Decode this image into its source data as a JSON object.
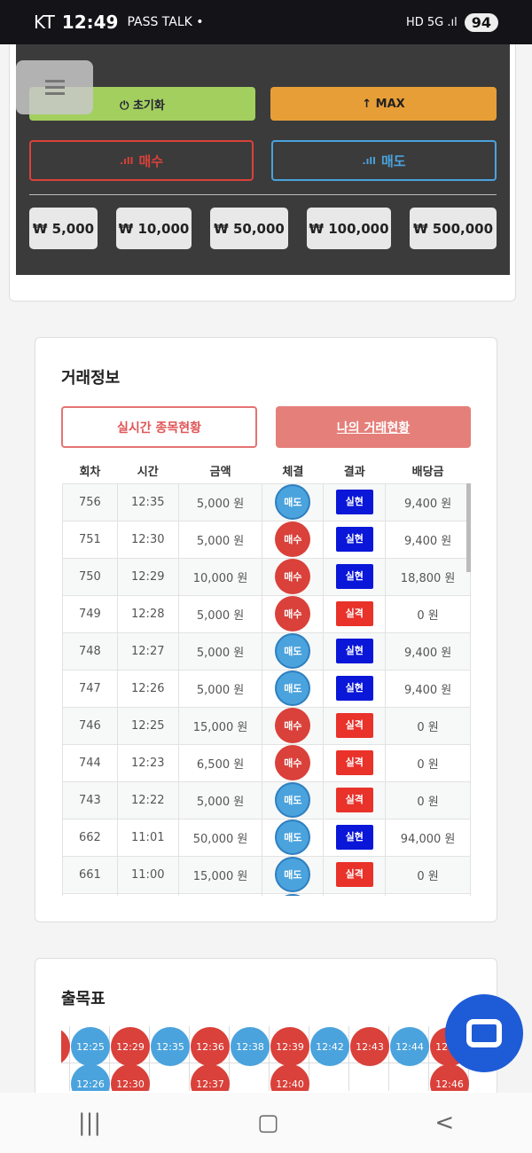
{
  "status": {
    "carrier": "KT",
    "time": "12:49",
    "icons": "PASS TALK •",
    "network": "HD 5G .ıl",
    "battery": "94"
  },
  "controls": {
    "reset": "⏻ 초기화",
    "max": "↑ MAX",
    "buy": "매수",
    "sell": "매도",
    "amounts": [
      "₩ 5,000",
      "₩ 10,000",
      "₩ 50,000",
      "₩ 100,000",
      "₩ 500,000"
    ],
    "buy_color": "#d9413a",
    "sell_color": "#4aa3dd"
  },
  "trade": {
    "title": "거래정보",
    "tab_live": "실시간 종목현황",
    "tab_mine": "나의 거래현황",
    "headers": [
      "회차",
      "시간",
      "금액",
      "체결",
      "결과",
      "배당금"
    ],
    "rows": [
      [
        "756",
        "12:35",
        "5,000 원",
        "매도",
        "실현",
        "9,400 원"
      ],
      [
        "751",
        "12:30",
        "5,000 원",
        "매수",
        "실현",
        "9,400 원"
      ],
      [
        "750",
        "12:29",
        "10,000 원",
        "매수",
        "실현",
        "18,800 원"
      ],
      [
        "749",
        "12:28",
        "5,000 원",
        "매수",
        "실격",
        "0 원"
      ],
      [
        "748",
        "12:27",
        "5,000 원",
        "매도",
        "실현",
        "9,400 원"
      ],
      [
        "747",
        "12:26",
        "5,000 원",
        "매도",
        "실현",
        "9,400 원"
      ],
      [
        "746",
        "12:25",
        "15,000 원",
        "매수",
        "실격",
        "0 원"
      ],
      [
        "744",
        "12:23",
        "6,500 원",
        "매수",
        "실격",
        "0 원"
      ],
      [
        "743",
        "12:22",
        "5,000 원",
        "매도",
        "실격",
        "0 원"
      ],
      [
        "662",
        "11:01",
        "50,000 원",
        "매도",
        "실현",
        "94,000 원"
      ],
      [
        "661",
        "11:00",
        "15,000 원",
        "매도",
        "실격",
        "0 원"
      ]
    ]
  },
  "chart": {
    "title": "출목표",
    "columns": [
      [
        {
          "t": "",
          "c": "buy"
        }
      ],
      [
        {
          "t": "12:25",
          "c": "sell"
        },
        {
          "t": "12:26",
          "c": "sell"
        }
      ],
      [
        {
          "t": "12:29",
          "c": "buy"
        },
        {
          "t": "12:30",
          "c": "buy"
        }
      ],
      [
        {
          "t": "12:35",
          "c": "sell"
        }
      ],
      [
        {
          "t": "12:36",
          "c": "buy"
        },
        {
          "t": "12:37",
          "c": "buy"
        }
      ],
      [
        {
          "t": "12:38",
          "c": "sell"
        }
      ],
      [
        {
          "t": "12:39",
          "c": "buy"
        },
        {
          "t": "12:40",
          "c": "buy"
        }
      ],
      [
        {
          "t": "12:42",
          "c": "sell"
        }
      ],
      [
        {
          "t": "12:43",
          "c": "buy"
        }
      ],
      [
        {
          "t": "12:44",
          "c": "sell"
        }
      ],
      [
        {
          "t": "12:45",
          "c": "buy"
        },
        {
          "t": "12:46",
          "c": "buy"
        }
      ]
    ]
  }
}
